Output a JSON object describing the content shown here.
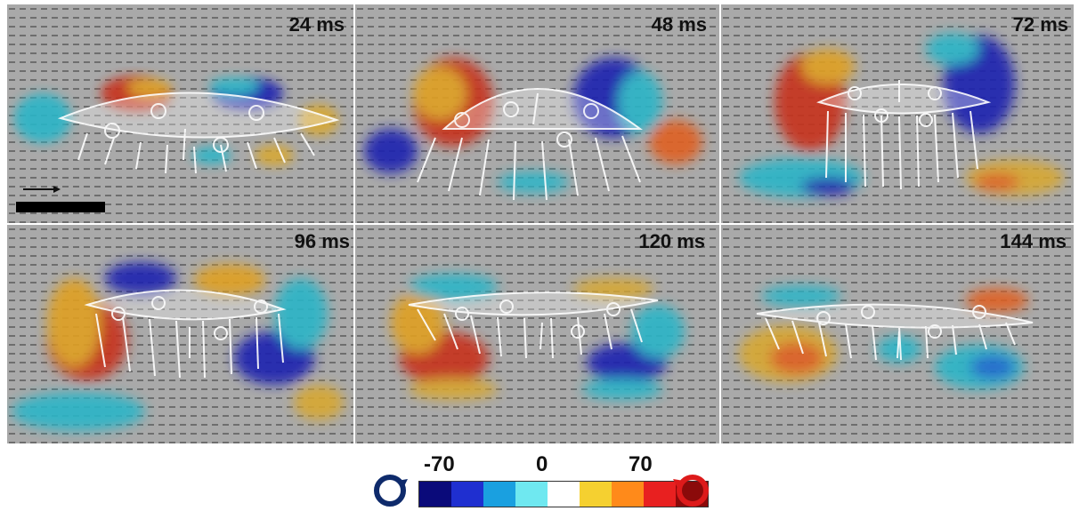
{
  "panels": [
    {
      "label": "24 ms"
    },
    {
      "label": "48 ms"
    },
    {
      "label": "72 ms"
    },
    {
      "label": "96 ms"
    },
    {
      "label": "120 ms"
    },
    {
      "label": "144 ms"
    }
  ],
  "colorbar": {
    "min_label": "-70",
    "mid_label": "0",
    "max_label": "70",
    "colors": [
      "#0a0a7a",
      "#1f2fd0",
      "#1aa0e0",
      "#6fe8f0",
      "#ffffff",
      "#f5d030",
      "#ff8a1a",
      "#e82020",
      "#8b0a0a"
    ],
    "ccw_color": "#0e2a6b",
    "cw_color": "#dd1a1a"
  }
}
